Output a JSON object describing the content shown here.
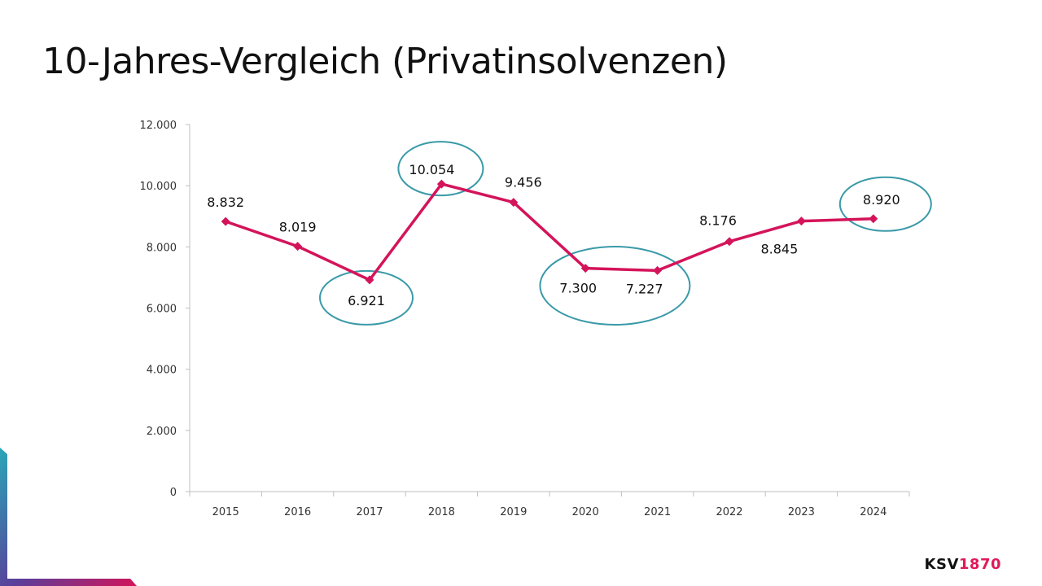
{
  "slide": {
    "title": "10-Jahres-Vergleich (Privatinsolvenzen)"
  },
  "logo": {
    "text_dark": "KSV",
    "text_accent": "1870",
    "accent_color": "#e0195a"
  },
  "colors": {
    "line": "#d4145a",
    "highlight_circle": "#3a9aa8",
    "axis": "#bfbfbf"
  },
  "chart_data": {
    "type": "line",
    "title": "",
    "xlabel": "",
    "ylabel": "",
    "categories": [
      "2015",
      "2016",
      "2017",
      "2018",
      "2019",
      "2020",
      "2021",
      "2022",
      "2023",
      "2024"
    ],
    "series": [
      {
        "values": [
          8832,
          8019,
          6921,
          10054,
          9456,
          7300,
          7227,
          8176,
          8845,
          8920
        ],
        "labels": [
          "8.832",
          "8.019",
          "6.921",
          "10.054",
          "9.456",
          "7.300",
          "7.227",
          "8.176",
          "8.845",
          "8.920"
        ],
        "color": "#d4145a",
        "marker": "diamond"
      }
    ],
    "ylim": [
      0,
      12000
    ],
    "yticks": [
      0,
      2000,
      4000,
      6000,
      8000,
      10000,
      12000
    ],
    "ytick_labels": [
      "0",
      "2.000",
      "4.000",
      "6.000",
      "8.000",
      "10.000",
      "12.000"
    ],
    "grid": false,
    "legend": "none",
    "highlighted_points": [
      "2017",
      "2018",
      "2020",
      "2021",
      "2024"
    ]
  }
}
